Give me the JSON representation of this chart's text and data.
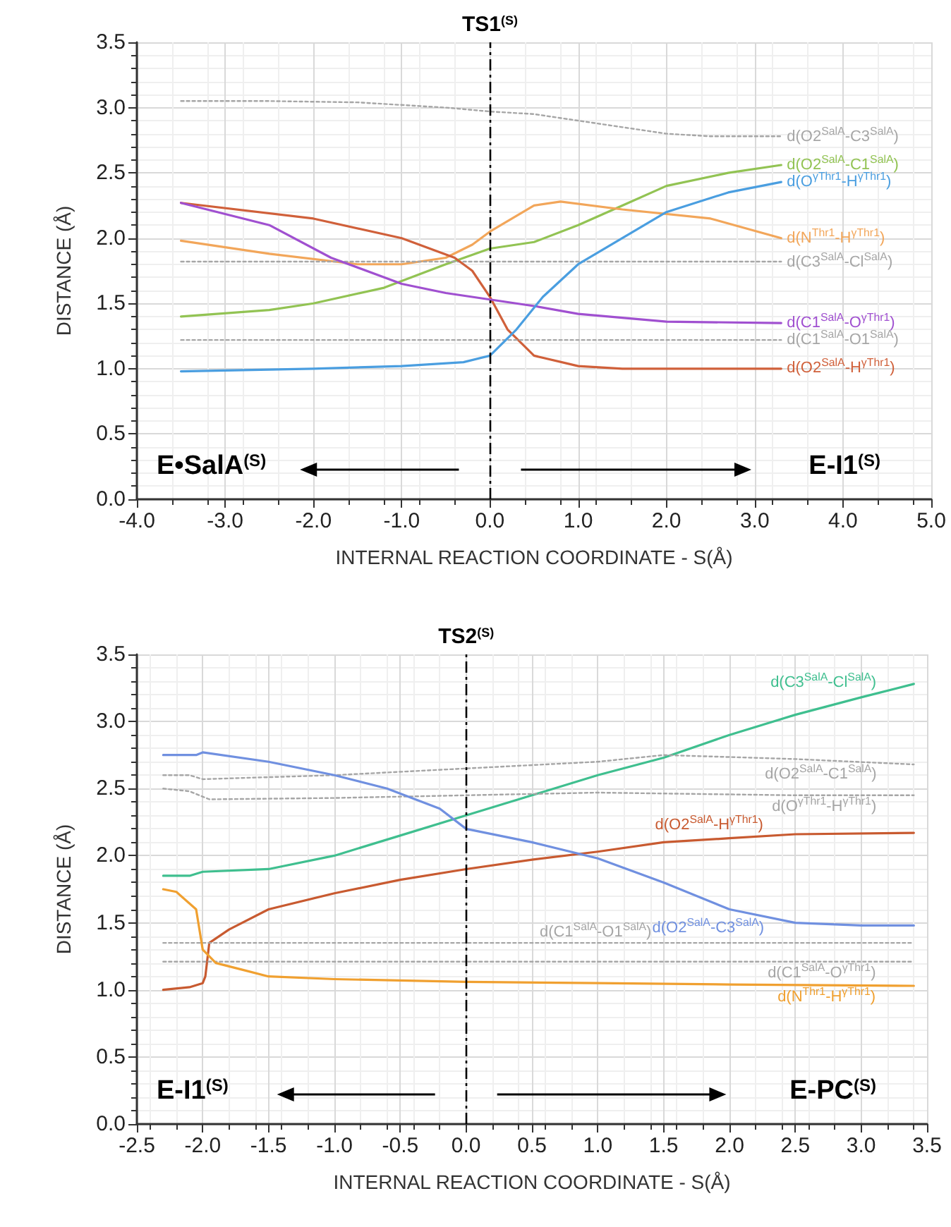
{
  "chart_data": [
    {
      "type": "line",
      "xlabel": "INTERNAL REACTION COORDINATE - S(Å)",
      "ylabel": "DISTANCE (Å)",
      "grid": true,
      "xlim": [
        -4,
        5
      ],
      "xticks": [
        {
          "value": -4,
          "label": "-4.0"
        },
        {
          "value": -3,
          "label": "-3.0"
        },
        {
          "value": -2,
          "label": "-2.0"
        },
        {
          "value": -1,
          "label": "-1.0"
        },
        {
          "value": 0,
          "label": "0.0"
        },
        {
          "value": 1,
          "label": "1.0"
        },
        {
          "value": 2,
          "label": "2.0"
        },
        {
          "value": 3,
          "label": "3.0"
        },
        {
          "value": 4,
          "label": "4.0"
        },
        {
          "value": 5,
          "label": "5.0"
        }
      ],
      "ylim": [
        0,
        3.5
      ],
      "yticks": [
        {
          "value": 0,
          "label": "0.0"
        },
        {
          "value": 0.5,
          "label": "0.5"
        },
        {
          "value": 1,
          "label": "1.0"
        },
        {
          "value": 1.5,
          "label": "1.5"
        },
        {
          "value": 2,
          "label": "2.0"
        },
        {
          "value": 2.5,
          "label": "2.5"
        },
        {
          "value": 3,
          "label": "3.0"
        },
        {
          "value": 3.5,
          "label": "3.5"
        }
      ],
      "ref_lines": [
        {
          "axis": "x",
          "value": 0,
          "label": "TS1$^{(S)}$",
          "color": "#000000",
          "line_style": "dashed"
        }
      ],
      "annotations": [
        "E•SalA$^{(S)}$",
        "E-I1$^{(S)}$"
      ],
      "series": [
        {
          "name": "d(O2$^{SalA}$-C3$^{SalA}$)",
          "color": "#a6a6a6",
          "line_style": "dotted",
          "x": [
            -3.5,
            -2.5,
            -1.5,
            -0.5,
            0,
            0.5,
            1,
            1.5,
            2,
            2.5,
            3.3
          ],
          "values": [
            3.05,
            3.05,
            3.04,
            3.0,
            2.97,
            2.95,
            2.9,
            2.85,
            2.8,
            2.78,
            2.78
          ]
        },
        {
          "name": "d(O2$^{SalA}$-C1$^{SalA}$)",
          "color": "#92c353",
          "x": [
            -3.5,
            -2.5,
            -2,
            -1.2,
            -0.5,
            0,
            0.5,
            1,
            1.5,
            2,
            2.7,
            3.3
          ],
          "values": [
            1.4,
            1.45,
            1.5,
            1.62,
            1.8,
            1.92,
            1.97,
            2.1,
            2.25,
            2.4,
            2.5,
            2.56
          ]
        },
        {
          "name": "d(N$^{Thr1}$-H$^{γThr1}$)",
          "color": "#f2a65a",
          "x": [
            -3.5,
            -2.5,
            -1.5,
            -1,
            -0.5,
            -0.2,
            0,
            0.5,
            0.8,
            1.5,
            2.5,
            3.3
          ],
          "values": [
            1.98,
            1.88,
            1.8,
            1.8,
            1.85,
            1.95,
            2.05,
            2.25,
            2.28,
            2.22,
            2.15,
            2.0
          ]
        },
        {
          "name": "d(C3$^{SalA}$-Cl$^{SalA}$)",
          "color": "#a6a6a6",
          "line_style": "dotted",
          "x": [
            -3.5,
            3.3
          ],
          "values": [
            1.82,
            1.82
          ]
        },
        {
          "name": "d(O2$^{SalA}$-H$^{γThr1}$)",
          "color": "#d0603a",
          "x": [
            -3.5,
            -2,
            -1,
            -0.4,
            -0.2,
            0,
            0.2,
            0.5,
            1,
            1.5,
            3.3
          ],
          "values": [
            2.27,
            2.15,
            2.0,
            1.85,
            1.75,
            1.55,
            1.3,
            1.1,
            1.02,
            1.0,
            1.0
          ]
        },
        {
          "name": "d(C1$^{SalA}$-O$^{γThr1}$)",
          "color": "#a050d0",
          "x": [
            -3.5,
            -2.5,
            -1.8,
            -1,
            -0.5,
            0,
            0.5,
            1,
            2,
            3.3
          ],
          "values": [
            2.27,
            2.1,
            1.85,
            1.65,
            1.58,
            1.53,
            1.48,
            1.42,
            1.36,
            1.35
          ]
        },
        {
          "name": "d(C1$^{SalA}$-O1$^{SalA}$)",
          "color": "#a6a6a6",
          "line_style": "dotted",
          "x": [
            -3.5,
            3.3
          ],
          "values": [
            1.22,
            1.22
          ]
        },
        {
          "name": "d(O$^{γThr1}$-H$^{γThr1}$)",
          "color": "#4a9ee0",
          "x": [
            -3.5,
            -2,
            -1,
            -0.3,
            0,
            0.3,
            0.6,
            1,
            1.5,
            2,
            2.7,
            3.3
          ],
          "values": [
            0.98,
            1.0,
            1.02,
            1.05,
            1.1,
            1.3,
            1.55,
            1.8,
            2.0,
            2.2,
            2.35,
            2.43
          ]
        }
      ]
    },
    {
      "type": "line",
      "xlabel": "INTERNAL REACTION COORDINATE - S(Å)",
      "ylabel": "DISTANCE (Å)",
      "grid": true,
      "xlim": [
        -2.5,
        3.5
      ],
      "xticks": [
        {
          "value": -2.5,
          "label": "-2.5"
        },
        {
          "value": -2,
          "label": "-2.0"
        },
        {
          "value": -1.5,
          "label": "-1.5"
        },
        {
          "value": -1,
          "label": "-1.0"
        },
        {
          "value": -0.5,
          "label": "-0.5"
        },
        {
          "value": 0,
          "label": "0.0"
        },
        {
          "value": 0.5,
          "label": "0.5"
        },
        {
          "value": 1,
          "label": "1.0"
        },
        {
          "value": 1.5,
          "label": "1.5"
        },
        {
          "value": 2,
          "label": "2.0"
        },
        {
          "value": 2.5,
          "label": "2.5"
        },
        {
          "value": 3,
          "label": "3.0"
        },
        {
          "value": 3.5,
          "label": "3.5"
        }
      ],
      "ylim": [
        0,
        3.5
      ],
      "yticks": [
        {
          "value": 0,
          "label": "0.0"
        },
        {
          "value": 0.5,
          "label": "0.5"
        },
        {
          "value": 1,
          "label": "1.0"
        },
        {
          "value": 1.5,
          "label": "1.5"
        },
        {
          "value": 2,
          "label": "2.0"
        },
        {
          "value": 2.5,
          "label": "2.5"
        },
        {
          "value": 3,
          "label": "3.0"
        },
        {
          "value": 3.5,
          "label": "3.5"
        }
      ],
      "ref_lines": [
        {
          "axis": "x",
          "value": 0,
          "label": "TS2$^{(S)}$",
          "color": "#000000",
          "line_style": "dashed"
        }
      ],
      "annotations": [
        "E-I1$^{(S)}$",
        "E-PC$^{(S)}$"
      ],
      "series": [
        {
          "name": "d(C3$^{SalA}$-Cl$^{SalA}$)",
          "color": "#3fbf8f",
          "x": [
            -2.3,
            -2.1,
            -2,
            -1.5,
            -1,
            -0.5,
            0,
            0.5,
            1,
            1.5,
            2,
            2.5,
            3,
            3.4
          ],
          "values": [
            1.85,
            1.85,
            1.88,
            1.9,
            2.0,
            2.15,
            2.3,
            2.45,
            2.6,
            2.73,
            2.9,
            3.05,
            3.18,
            3.28
          ]
        },
        {
          "name": "d(O2$^{SalA}$-C1$^{SalA}$)",
          "color": "#a6a6a6",
          "line_style": "dotted",
          "x": [
            -2.3,
            -2.1,
            -2,
            -1,
            0,
            1,
            1.5,
            2.5,
            3.4
          ],
          "values": [
            2.6,
            2.6,
            2.57,
            2.6,
            2.65,
            2.7,
            2.75,
            2.72,
            2.68
          ]
        },
        {
          "name": "d(O$^{γThr1}$-H$^{γThr1}$)",
          "color": "#a6a6a6",
          "line_style": "dotted",
          "x": [
            -2.3,
            -2.1,
            -1.95,
            -1,
            0,
            1,
            2.5,
            3.4
          ],
          "values": [
            2.5,
            2.48,
            2.42,
            2.43,
            2.45,
            2.47,
            2.45,
            2.45
          ]
        },
        {
          "name": "d(O2$^{SalA}$-H$^{γThr1}$)",
          "color": "#c85a30",
          "x": [
            -2.3,
            -2.1,
            -2,
            -1.98,
            -1.95,
            -1.8,
            -1.5,
            -1,
            -0.5,
            0,
            0.5,
            1,
            1.5,
            2,
            2.5,
            3.4
          ],
          "values": [
            1.0,
            1.02,
            1.05,
            1.1,
            1.35,
            1.45,
            1.6,
            1.72,
            1.82,
            1.9,
            1.97,
            2.03,
            2.1,
            2.13,
            2.16,
            2.17
          ]
        },
        {
          "name": "d(O2$^{SalA}$-C3$^{SalA}$)",
          "color": "#7090e0",
          "x": [
            -2.3,
            -2.05,
            -2,
            -1.5,
            -1,
            -0.6,
            -0.2,
            0,
            0.5,
            1,
            1.5,
            2,
            2.5,
            3,
            3.4
          ],
          "values": [
            2.75,
            2.75,
            2.77,
            2.7,
            2.6,
            2.5,
            2.35,
            2.2,
            2.1,
            1.98,
            1.8,
            1.6,
            1.5,
            1.48,
            1.48
          ]
        },
        {
          "name": "d(C1$^{SalA}$-O1$^{SalA}$)",
          "color": "#a6a6a6",
          "line_style": "dotted",
          "x": [
            -2.3,
            3.4
          ],
          "values": [
            1.35,
            1.35
          ]
        },
        {
          "name": "d(C1$^{SalA}$-O$^{γThr1}$)",
          "color": "#a6a6a6",
          "line_style": "dotted",
          "x": [
            -2.3,
            3.4
          ],
          "values": [
            1.21,
            1.21
          ]
        },
        {
          "name": "d(N$^{Thr1}$-H$^{γThr1}$)",
          "color": "#f0a030",
          "x": [
            -2.3,
            -2.2,
            -2.05,
            -2,
            -1.9,
            -1.7,
            -1.5,
            -1,
            0,
            1,
            2,
            3.4
          ],
          "values": [
            1.75,
            1.73,
            1.6,
            1.3,
            1.2,
            1.15,
            1.1,
            1.08,
            1.06,
            1.05,
            1.04,
            1.03
          ]
        }
      ]
    }
  ]
}
